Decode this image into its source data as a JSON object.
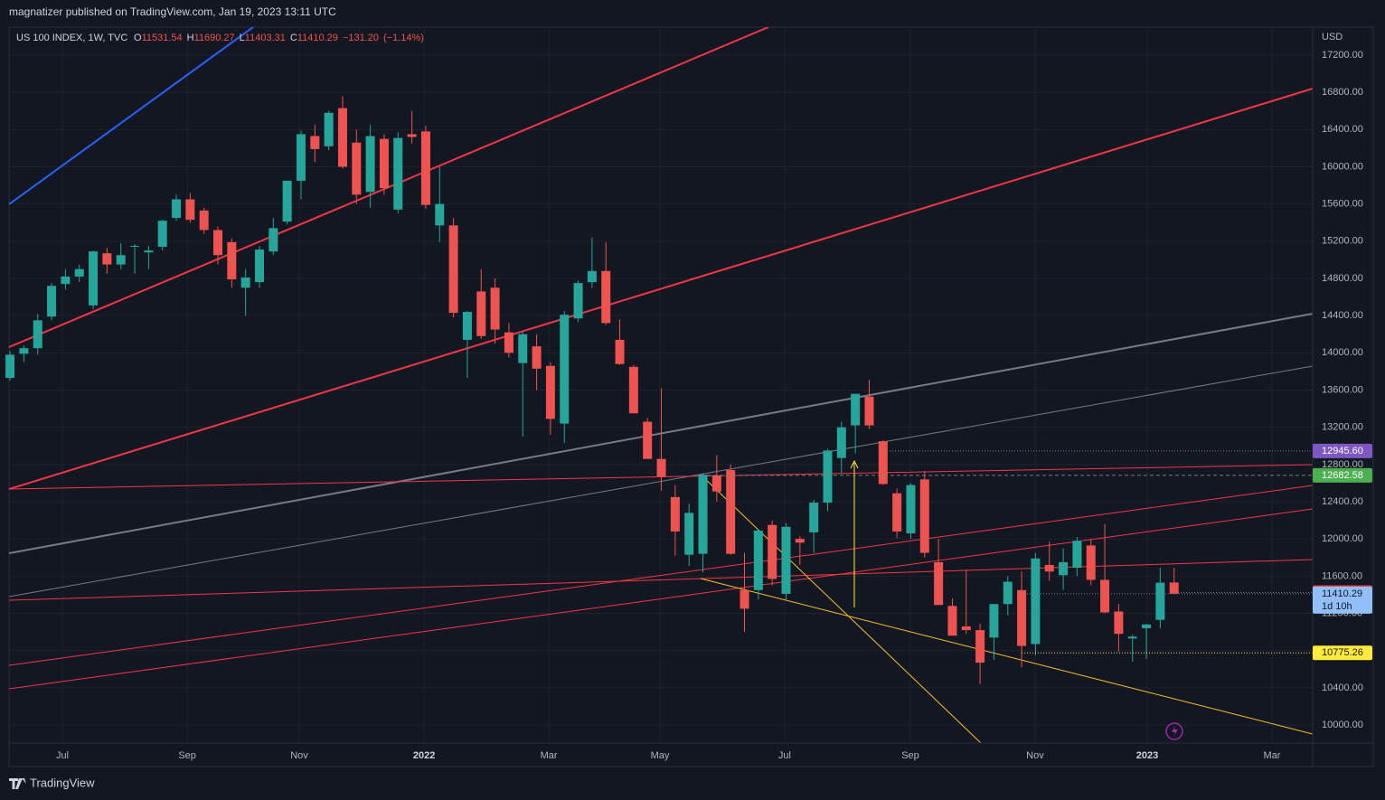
{
  "header": {
    "published": "magnatizer published on TradingView.com, Jan 19, 2023 13:11 UTC"
  },
  "footer": {
    "brand": "TradingView"
  },
  "chart_data": {
    "type": "candlestick",
    "legend": {
      "symbol": "US 100 INDEX, 1W, TVC",
      "o": "O",
      "h": "H",
      "l": "L",
      "c": "C",
      "change": {
        "value": -131.2,
        "label": "−131.20"
      },
      "change_pct": {
        "value": -1.14,
        "label": "(−1.14%)"
      }
    },
    "currency": "USD",
    "up_color": "#26a69a",
    "down_color": "#ef5350",
    "open": [
      13730,
      13990,
      14050,
      14390,
      14740,
      14820,
      14510,
      15070,
      14950,
      15140,
      15080,
      15140,
      15450,
      15650,
      15530,
      15320,
      15190,
      14700,
      14760,
      15090,
      15410,
      15850,
      16330,
      16220,
      16630,
      16260,
      15730,
      16300,
      15540,
      16350,
      16380,
      15370,
      15370,
      14140,
      14660,
      14700,
      14220,
      13890,
      14070,
      13860,
      13240,
      14370,
      14760,
      14880,
      14140,
      13850,
      13260,
      12860,
      12450,
      11830,
      11840,
      12680,
      12740,
      11450,
      11450,
      12150,
      11410,
      12000,
      12070,
      12390,
      12870,
      13220,
      13530,
      13050,
      12490,
      12060,
      12640,
      11750,
      11280,
      11060,
      11020,
      10940,
      11300,
      11450,
      10870,
      11720,
      11610,
      11690,
      11930,
      11560,
      11220,
      10930,
      11040,
      11130,
      11531.54
    ],
    "high": [
      14020,
      14080,
      14420,
      14750,
      14900,
      14950,
      15100,
      15130,
      15180,
      15170,
      15150,
      15430,
      15700,
      15720,
      15560,
      15360,
      15230,
      14900,
      15150,
      15450,
      15850,
      16390,
      16450,
      16600,
      16760,
      16400,
      16450,
      16350,
      16370,
      16600,
      16440,
      16000,
      15450,
      14450,
      14900,
      14800,
      14320,
      14230,
      14200,
      13900,
      14450,
      14780,
      15240,
      15190,
      14360,
      13870,
      13300,
      13620,
      12580,
      12380,
      12710,
      12900,
      12800,
      11850,
      12100,
      12200,
      12170,
      12030,
      12420,
      12970,
      13260,
      13560,
      13710,
      13060,
      12540,
      12600,
      12730,
      12000,
      11360,
      11670,
      11090,
      11300,
      11600,
      11650,
      11850,
      11970,
      11900,
      12020,
      12000,
      12160,
      11300,
      10970,
      11090,
      11690,
      11690.27
    ],
    "low": [
      13700,
      13900,
      13980,
      14350,
      14680,
      14760,
      14470,
      14850,
      14900,
      14850,
      14900,
      15100,
      15420,
      15400,
      15280,
      14950,
      14700,
      14400,
      14700,
      15050,
      15380,
      15650,
      16050,
      16180,
      15980,
      15600,
      15560,
      15700,
      15500,
      16250,
      15550,
      15190,
      14380,
      13730,
      14150,
      14100,
      13950,
      13100,
      13600,
      13120,
      13030,
      14330,
      14700,
      14300,
      13870,
      13350,
      12860,
      12520,
      11820,
      11710,
      11640,
      12400,
      11830,
      11000,
      11350,
      11500,
      11350,
      11720,
      11850,
      12300,
      12700,
      12920,
      13180,
      12580,
      12010,
      12000,
      11800,
      11290,
      10960,
      10980,
      10440,
      10700,
      11180,
      10620,
      10750,
      11550,
      11450,
      11600,
      11500,
      11200,
      10790,
      10680,
      10710,
      11040,
      11403.31
    ],
    "close": [
      13980,
      14050,
      14350,
      14720,
      14820,
      14900,
      15090,
      14950,
      15050,
      15150,
      15100,
      15420,
      15650,
      15430,
      15320,
      15050,
      14790,
      14810,
      15110,
      15340,
      15850,
      16350,
      16190,
      16580,
      16000,
      15700,
      16330,
      15770,
      16310,
      16320,
      15590,
      15600,
      14430,
      14440,
      14180,
      14250,
      14000,
      14200,
      13830,
      13290,
      14410,
      14750,
      14880,
      14320,
      13880,
      13350,
      12860,
      12670,
      12080,
      12280,
      12690,
      12510,
      11840,
      11250,
      12090,
      11570,
      12130,
      11960,
      12390,
      12950,
      13200,
      13560,
      13220,
      12590,
      12080,
      12580,
      11850,
      11290,
      10960,
      11020,
      10670,
      11300,
      11540,
      10850,
      11790,
      11650,
      11750,
      11980,
      11560,
      11210,
      10980,
      10950,
      11080,
      11530,
      11410.29
    ],
    "xlim": [
      -0.07,
      94
    ],
    "xticks": [
      {
        "value": 3.78,
        "label": "Jul"
      },
      {
        "value": 12.79,
        "label": "Sep"
      },
      {
        "value": 20.87,
        "label": "Nov"
      },
      {
        "value": 29.88,
        "label": "2022"
      },
      {
        "value": 38.88,
        "label": "Mar"
      },
      {
        "value": 46.9,
        "label": "May"
      },
      {
        "value": 55.9,
        "label": "Jul"
      },
      {
        "value": 64.97,
        "label": "Sep"
      },
      {
        "value": 73.97,
        "label": "Nov"
      },
      {
        "value": 82.06,
        "label": "2023"
      },
      {
        "value": 91.06,
        "label": "Mar"
      }
    ],
    "ylim": [
      9806,
      17501
    ],
    "yticks": [
      {
        "value": 10000,
        "label": "10000.00"
      },
      {
        "value": 10400,
        "label": "10400.00"
      },
      {
        "value": 10800,
        "label": "10800.00"
      },
      {
        "value": 11200,
        "label": "11200.00"
      },
      {
        "value": 11600,
        "label": "11600.00"
      },
      {
        "value": 12000,
        "label": "12000.00"
      },
      {
        "value": 12400,
        "label": "12400.00"
      },
      {
        "value": 12800,
        "label": "12800.00"
      },
      {
        "value": 13200,
        "label": "13200.00"
      },
      {
        "value": 13600,
        "label": "13600.00"
      },
      {
        "value": 14000,
        "label": "14000.00"
      },
      {
        "value": 14400,
        "label": "14400.00"
      },
      {
        "value": 14800,
        "label": "14800.00"
      },
      {
        "value": 15200,
        "label": "15200.00"
      },
      {
        "value": 15600,
        "label": "15600.00"
      },
      {
        "value": 16000,
        "label": "16000.00"
      },
      {
        "value": 16400,
        "label": "16400.00"
      },
      {
        "value": 16800,
        "label": "16800.00"
      },
      {
        "value": 17200,
        "label": "17200.00"
      }
    ],
    "grid": true,
    "price_markers": [
      {
        "value": 12945.6,
        "label": "12945.60",
        "color": "#7e57c2",
        "text_color": "#ffffff"
      },
      {
        "value": 12682.58,
        "label": "12682.58",
        "color": "#4caf50",
        "text_color": "#ffffff"
      },
      {
        "value": 11423.2,
        "label": "11423.20",
        "color": "#f23645",
        "text_color": "#ffffff"
      },
      {
        "value": 11410.29,
        "label": "11410.29",
        "color": "#90bff9",
        "text_color": "#131722",
        "countdown": "1d 10h"
      },
      {
        "value": 10775.26,
        "label": "10775.26",
        "color": "#ffeb3b",
        "text_color": "#131722"
      }
    ]
  }
}
